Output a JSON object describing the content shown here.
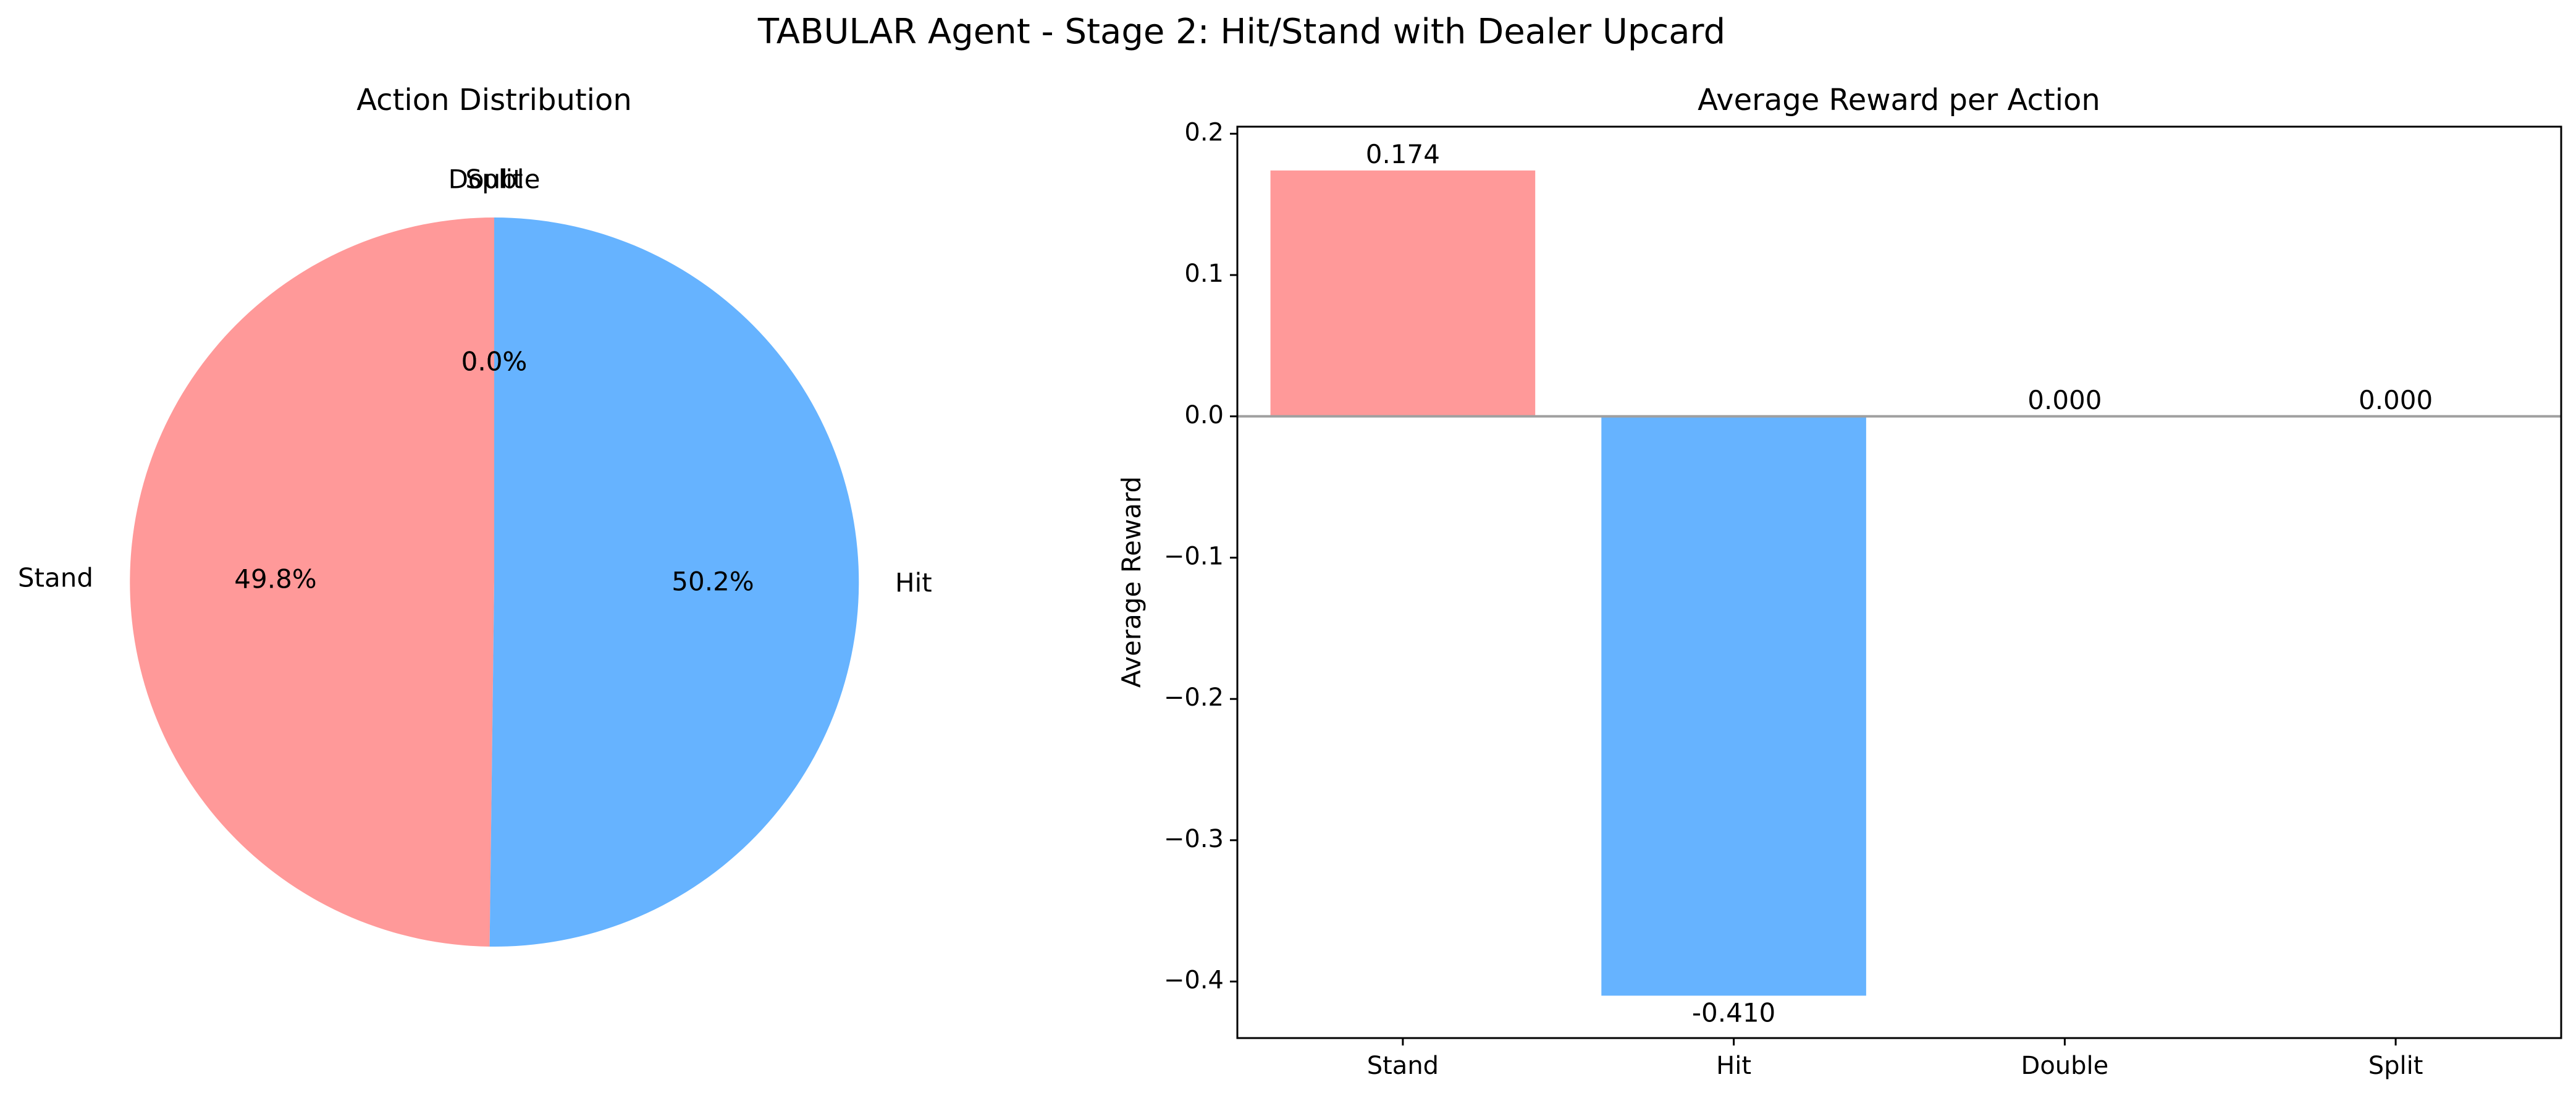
{
  "figure": {
    "suptitle": "TABULAR Agent - Stage 2: Hit/Stand with Dealer Upcard"
  },
  "chart_data": [
    {
      "type": "pie",
      "title": "Action Distribution",
      "labels": [
        "Stand",
        "Hit",
        "Double",
        "Split"
      ],
      "values": [
        49.8,
        50.2,
        0.0,
        0.0
      ],
      "percent_labels": [
        "49.8%",
        "50.2%",
        "0.0%",
        "0.0%"
      ],
      "colors": [
        "#ff9999",
        "#66b3ff",
        "#99ff99",
        "#ffcc99"
      ],
      "start_angle_deg": 90,
      "direction": "counterclockwise"
    },
    {
      "type": "bar",
      "title": "Average Reward per Action",
      "categories": [
        "Stand",
        "Hit",
        "Double",
        "Split"
      ],
      "values": [
        0.174,
        -0.41,
        0.0,
        0.0
      ],
      "value_labels": [
        "0.174",
        "-0.410",
        "0.000",
        "0.000"
      ],
      "colors": [
        "#ff9999",
        "#66b3ff",
        "#99ff99",
        "#ffcc99"
      ],
      "xlabel": "",
      "ylabel": "Average Reward",
      "ylim": [
        -0.44,
        0.205
      ],
      "yticks": [
        0.2,
        0.1,
        0.0,
        -0.1,
        -0.2,
        -0.3,
        -0.4
      ],
      "ytick_labels": [
        "0.2",
        "0.1",
        "0.0",
        "−0.1",
        "−0.2",
        "−0.3",
        "−0.4"
      ],
      "zero_line": true,
      "grid": false
    }
  ]
}
